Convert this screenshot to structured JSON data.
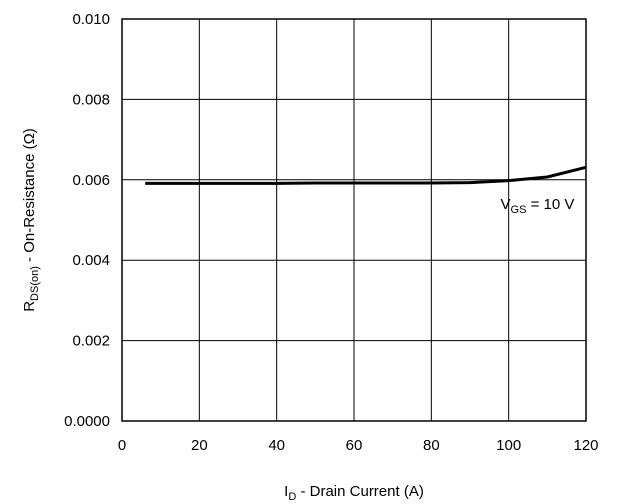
{
  "chart_data": {
    "type": "line",
    "x_range": [
      0,
      120
    ],
    "y_range": [
      0,
      0.01
    ],
    "x_ticks": [
      {
        "value": 0,
        "label": "0"
      },
      {
        "value": 20,
        "label": "20"
      },
      {
        "value": 40,
        "label": "40"
      },
      {
        "value": 60,
        "label": "60"
      },
      {
        "value": 80,
        "label": "80"
      },
      {
        "value": 100,
        "label": "100"
      },
      {
        "value": 120,
        "label": "120"
      }
    ],
    "y_ticks": [
      {
        "value": 0,
        "label": "0.0000"
      },
      {
        "value": 0.002,
        "label": "0.002"
      },
      {
        "value": 0.004,
        "label": "0.004"
      },
      {
        "value": 0.006,
        "label": "0.006"
      },
      {
        "value": 0.008,
        "label": "0.008"
      },
      {
        "value": 0.01,
        "label": "0.010"
      }
    ],
    "xlabel": {
      "main": "I",
      "sub": "D",
      "rest": " - Drain Current (A)"
    },
    "ylabel": {
      "main": "R",
      "sub": "DS(on)",
      "rest": "  - On-Resistance (Ω)"
    },
    "grid": true,
    "series": [
      {
        "color": "#000000",
        "x": [
          6,
          20,
          40,
          50,
          60,
          70,
          80,
          90,
          100,
          110,
          120
        ],
        "y": [
          0.00591,
          0.00591,
          0.00591,
          0.00592,
          0.00592,
          0.00592,
          0.00592,
          0.00593,
          0.00598,
          0.00607,
          0.00631
        ]
      }
    ],
    "annotations": [
      {
        "main": "V",
        "sub": "GS",
        "rest": " = 10 V",
        "x": 117,
        "y": 0.0054,
        "anchor": "end"
      }
    ]
  }
}
